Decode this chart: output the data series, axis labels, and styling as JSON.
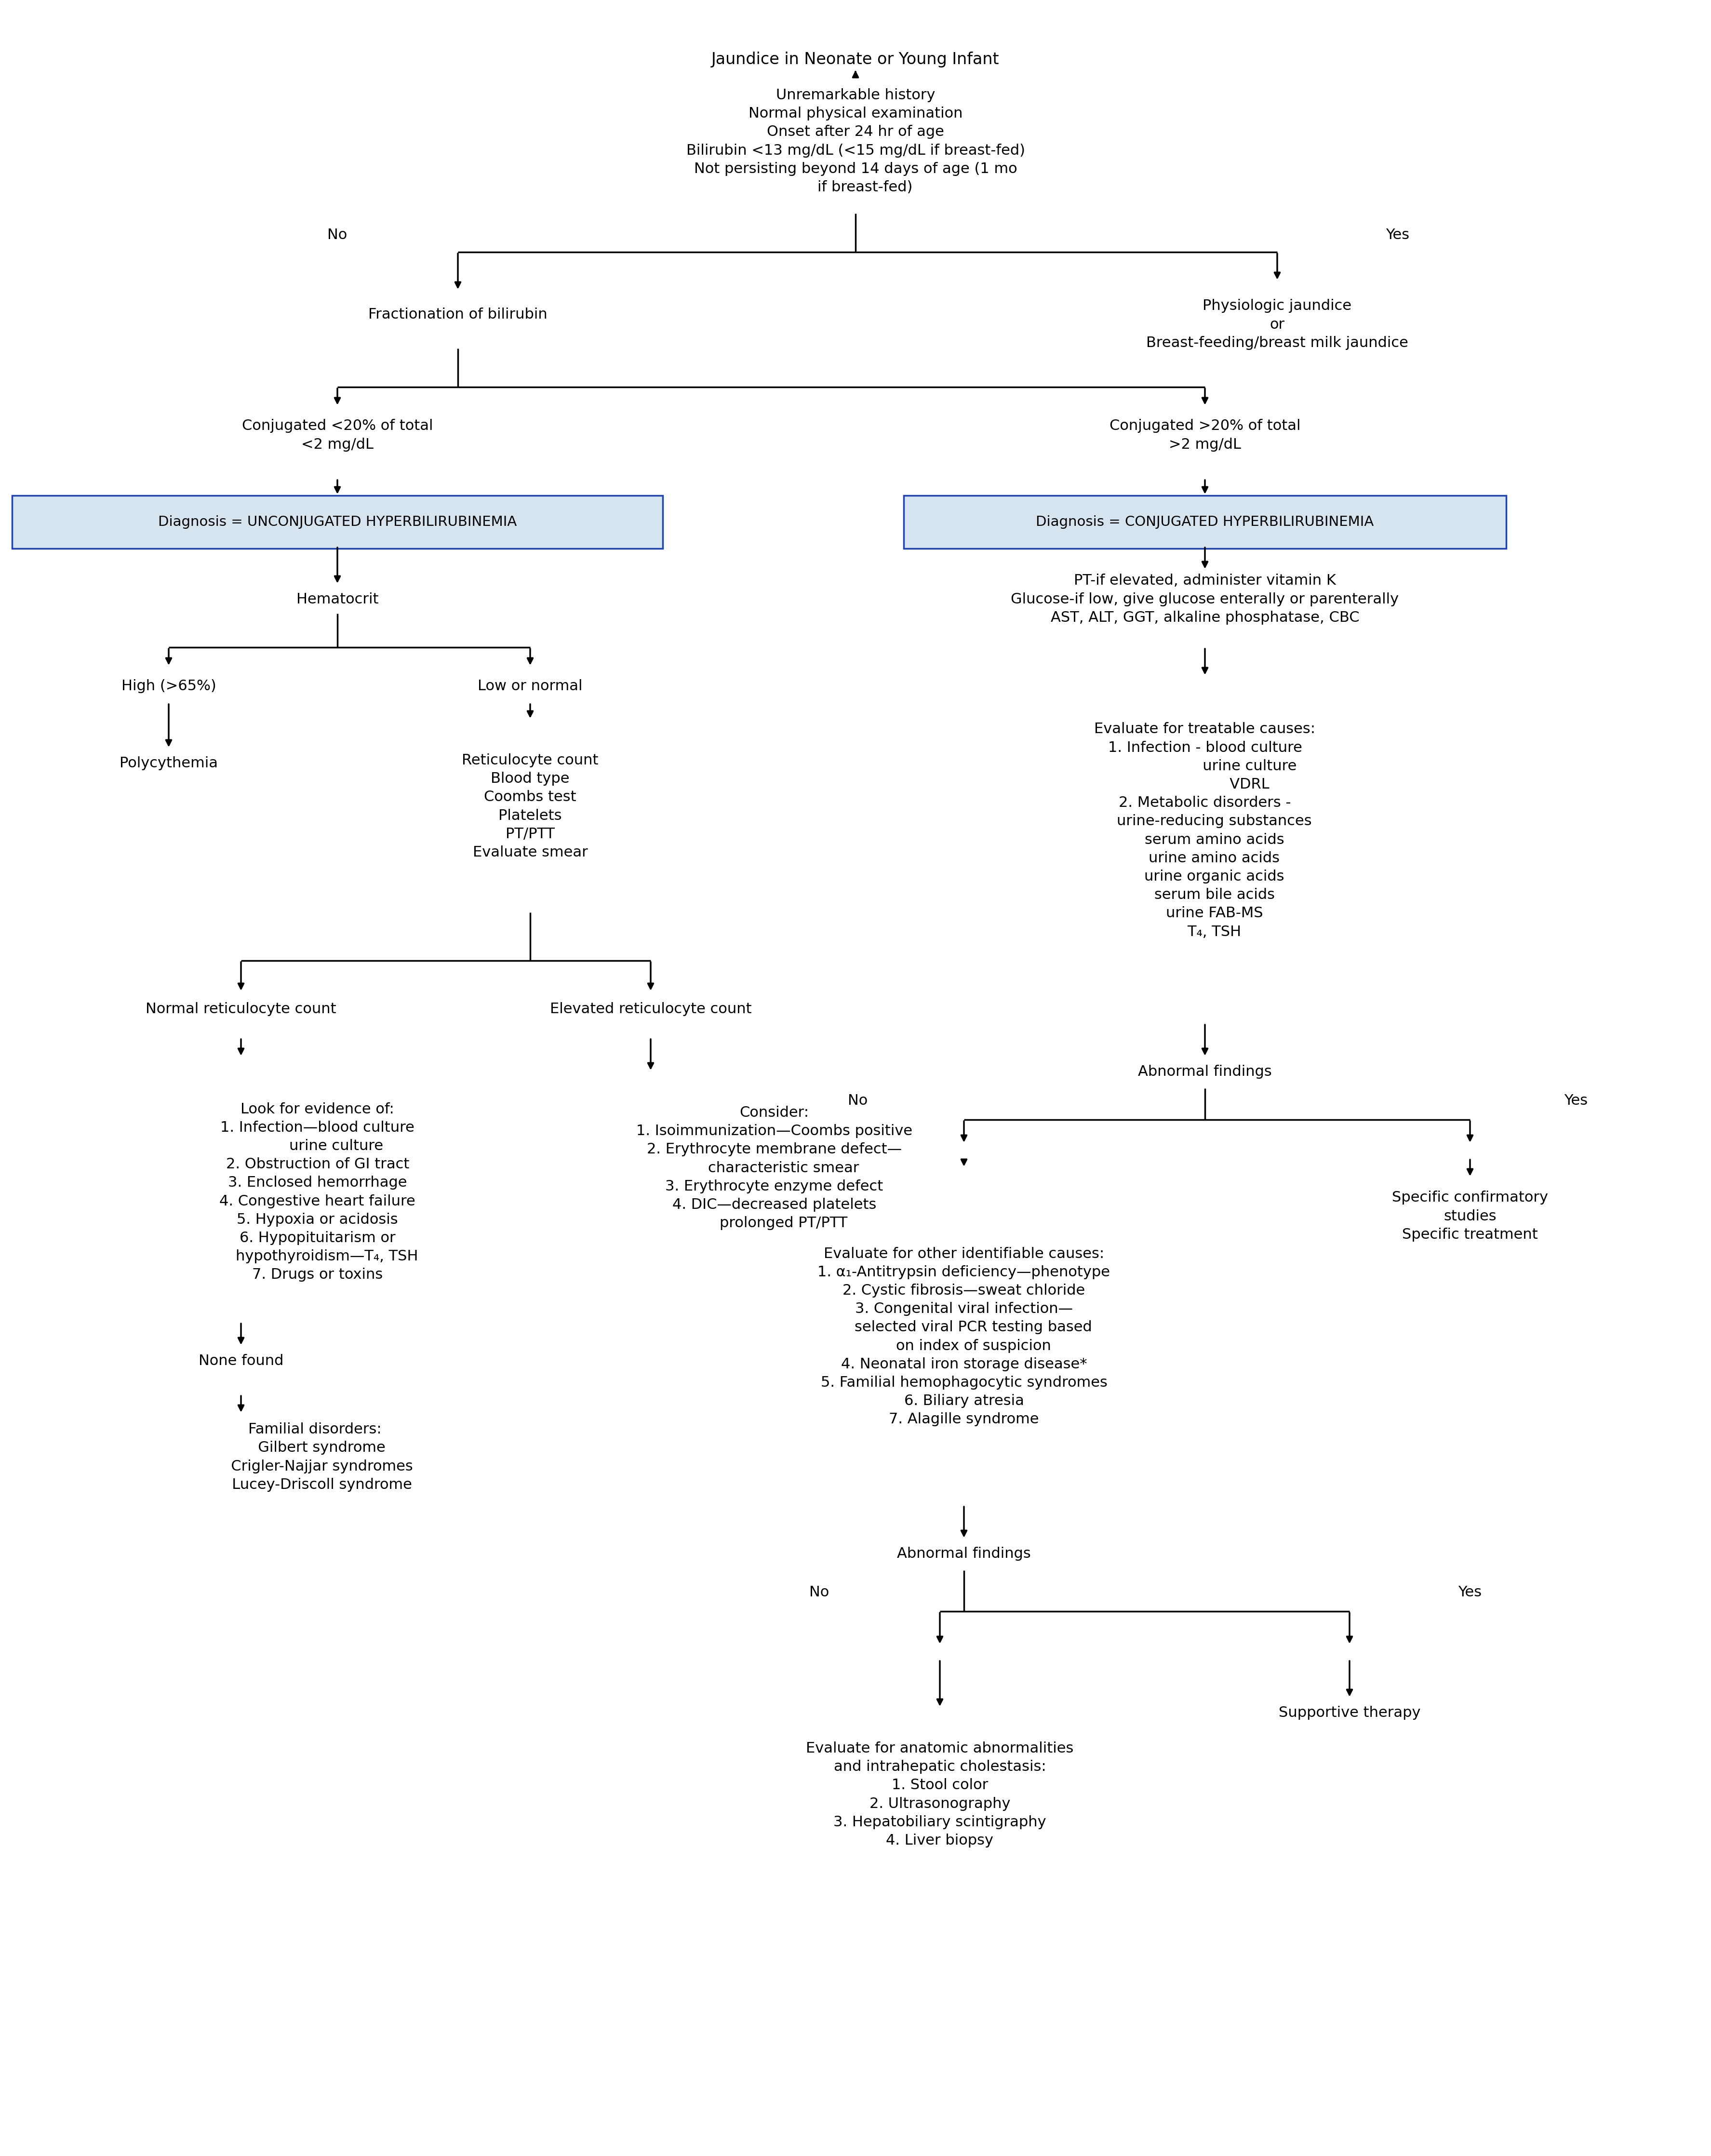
{
  "bg_color": "#ffffff",
  "box_bg": "#d6e4f0",
  "box_border_color": "#2244aa",
  "line_color": "#000000",
  "title": "Jaundice in Neonate or Young Infant",
  "criteria_text": "Unremarkable history\nNormal physical examination\nOnset after 24 hr of age\nBilirubin <13 mg/dL (<15 mg/dL if breast-fed)\nNot persisting beyond 14 days of age (1 mo\n    if breast-fed)",
  "no_label": "No",
  "yes_label": "Yes",
  "fractionation": "Fractionation of bilirubin",
  "physiologic": "Physiologic jaundice\nor\nBreast-feeding/breast milk jaundice",
  "conj_low": "Conjugated <20% of total\n<2 mg/dL",
  "conj_high": "Conjugated >20% of total\n>2 mg/dL",
  "box_unconj": "Diagnosis = UNCONJUGATED HYPERBILIRUBINEMIA",
  "box_conj": "Diagnosis = CONJUGATED HYPERBILIRUBINEMIA",
  "hematocrit": "Hematocrit",
  "high_65": "High (>65%)",
  "low_normal": "Low or normal",
  "polycythemia": "Polycythemia",
  "retic_tests": "Reticulocyte count\nBlood type\nCoombs test\nPlatelets\nPT/PTT\nEvaluate smear",
  "normal_retic": "Normal reticulocyte count",
  "elevated_retic": "Elevated reticulocyte count",
  "look_for": "Look for evidence of:\n1. Infection—blood culture\n        urine culture\n2. Obstruction of GI tract\n3. Enclosed hemorrhage\n4. Congestive heart failure\n5. Hypoxia or acidosis\n6. Hypopituitarism or\n    hypothyroidism—T₄, TSH\n7. Drugs or toxins",
  "none_found": "None found",
  "familial": "Familial disorders:\n   Gilbert syndrome\n   Crigler-Najjar syndromes\n   Lucey-Driscoll syndrome",
  "consider": "Consider:\n1. Isoimmunization—Coombs positive\n2. Erythrocyte membrane defect—\n    characteristic smear\n3. Erythrocyte enzyme defect\n4. DIC—decreased platelets\n    prolonged PT/PTT",
  "pt_glucose": "PT-if elevated, administer vitamin K\nGlucose-if low, give glucose enterally or parenterally\nAST, ALT, GGT, alkaline phosphatase, CBC",
  "treatable": "Evaluate for treatable causes:\n1. Infection - blood culture\n                   urine culture\n                   VDRL\n2. Metabolic disorders -\n    urine-reducing substances\n    serum amino acids\n    urine amino acids\n    urine organic acids\n    serum bile acids\n    urine FAB-MS\n    T₄, TSH",
  "abnormal1": "Abnormal findings",
  "specific": "Specific confirmatory\nstudies\nSpecific treatment",
  "other_causes": "Evaluate for other identifiable causes:\n1. α₁-Antitrypsin deficiency—phenotype\n2. Cystic fibrosis—sweat chloride\n3. Congenital viral infection—\n    selected viral PCR testing based\n    on index of suspicion\n4. Neonatal iron storage disease*\n5. Familial hemophagocytic syndromes\n6. Biliary atresia\n7. Alagille syndrome",
  "abnormal2": "Abnormal findings",
  "supportive": "Supportive therapy",
  "anatomic": "Evaluate for anatomic abnormalities\nand intrahepatic cholestasis:\n1. Stool color\n2. Ultrasonography\n3. Hepatobiliary scintigraphy\n4. Liver biopsy"
}
